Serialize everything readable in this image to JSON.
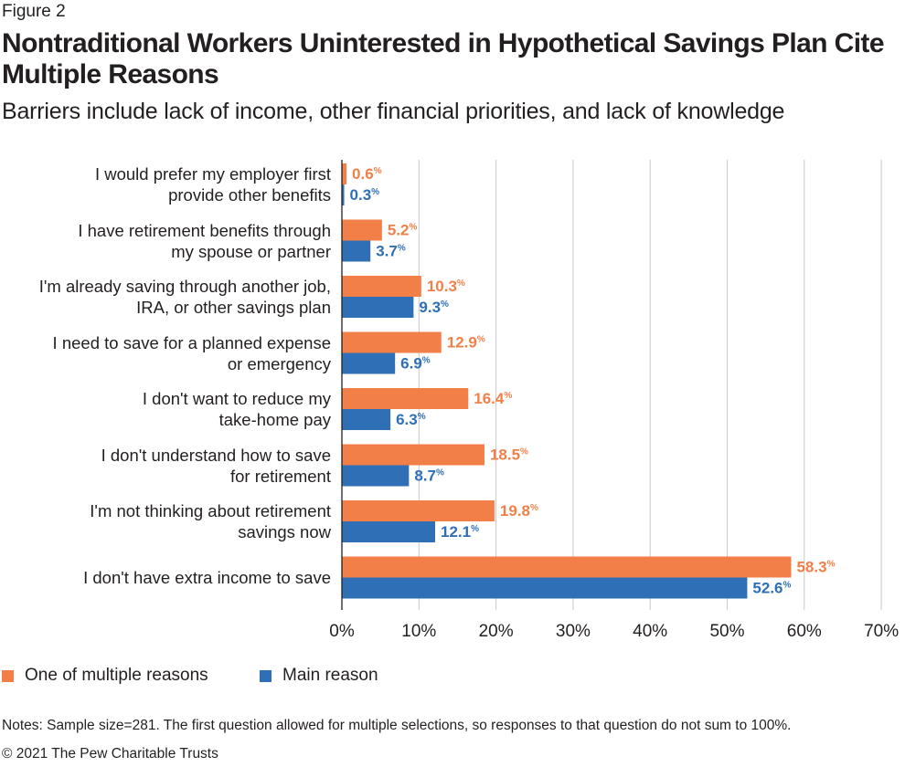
{
  "figure_label": "Figure 2",
  "title": "Nontraditional Workers Uninterested in Hypothetical Savings Plan Cite Multiple Reasons",
  "subtitle": "Barriers include lack of income, other financial priorities, and lack of knowledge",
  "chart_data": {
    "type": "bar",
    "orientation": "horizontal",
    "title": "Nontraditional Workers Uninterested in Hypothetical Savings Plan Cite Multiple Reasons",
    "xlabel": "",
    "ylabel": "",
    "xlim": [
      0,
      70
    ],
    "x_ticks": [
      0,
      10,
      20,
      30,
      40,
      50,
      60,
      70
    ],
    "tick_suffix": "%",
    "grid": true,
    "legend_position": "bottom-left",
    "categories": [
      [
        "I would prefer my employer first",
        "provide other benefits"
      ],
      [
        "I have retirement benefits through",
        "my spouse or partner"
      ],
      [
        "I'm already saving through another job,",
        "IRA, or other savings plan"
      ],
      [
        "I need to save for a planned expense",
        "or emergency"
      ],
      [
        "I don't want to reduce my",
        "take-home pay"
      ],
      [
        "I don't understand how to save",
        "for retirement"
      ],
      [
        "I'm not thinking about retirement",
        "savings now"
      ],
      [
        "I don't have extra income to save"
      ]
    ],
    "series": [
      {
        "name": "One of multiple reasons",
        "color": "#f37f48",
        "values": [
          0.6,
          5.2,
          10.3,
          12.9,
          16.4,
          18.5,
          19.8,
          58.3
        ]
      },
      {
        "name": "Main reason",
        "color": "#2e6fb6",
        "values": [
          0.3,
          3.7,
          9.3,
          6.9,
          6.3,
          8.7,
          12.1,
          52.6
        ]
      }
    ],
    "value_suffix": "%"
  },
  "legend": {
    "items": [
      {
        "label": "One of multiple reasons",
        "color": "#f37f48"
      },
      {
        "label": "Main reason",
        "color": "#2e6fb6"
      }
    ]
  },
  "notes": "Notes: Sample size=281. The first question allowed for multiple selections, so responses to that question do not sum to 100%.",
  "credit": "© 2021 The Pew Charitable Trusts",
  "colors": {
    "grid": "#c8c8c8",
    "axis": "#231f20",
    "text": "#231f20"
  }
}
